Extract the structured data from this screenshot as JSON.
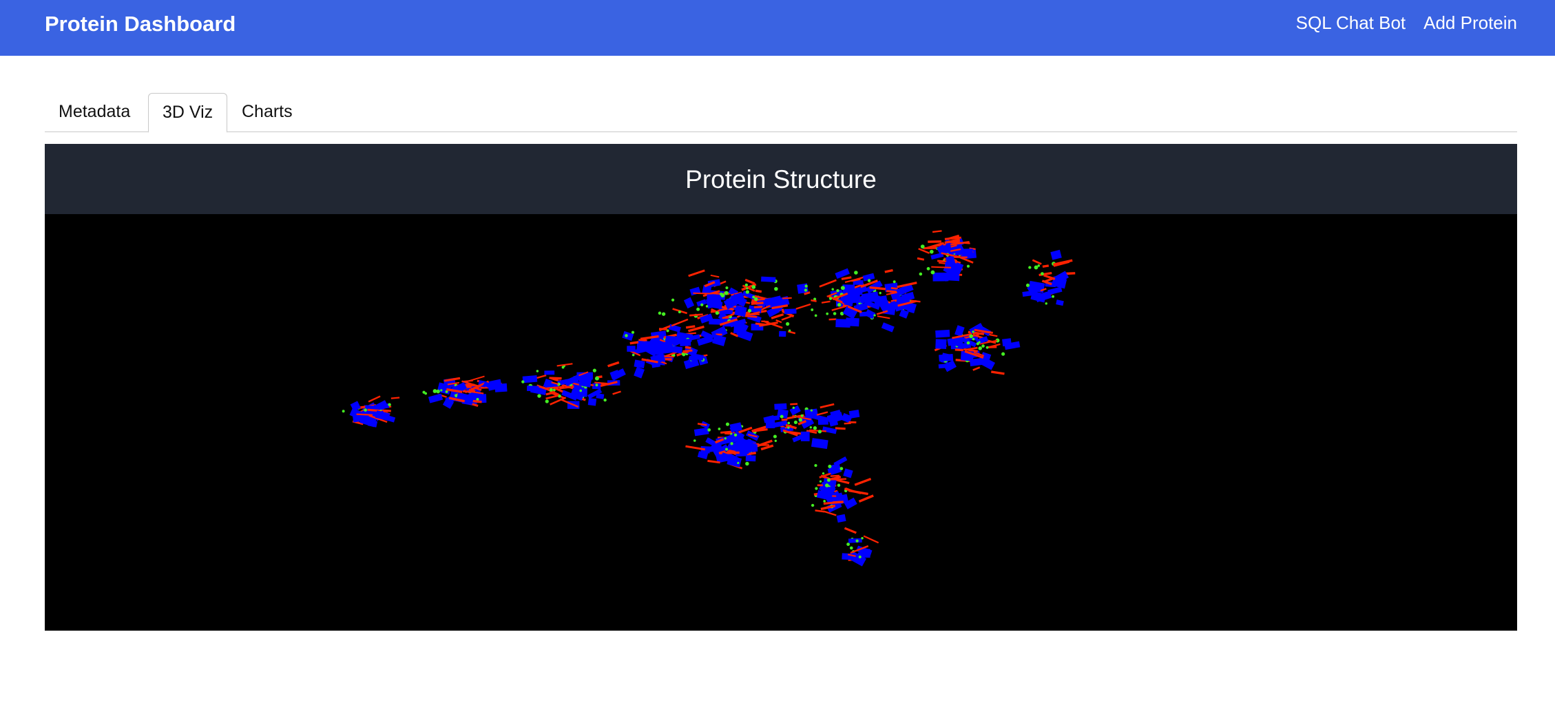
{
  "navbar": {
    "brand": "Protein Dashboard",
    "links": [
      "SQL Chat Bot",
      "Add Protein"
    ],
    "background_color": "#3a63e2"
  },
  "tabs": [
    {
      "label": "Metadata",
      "active": false
    },
    {
      "label": "3D Viz",
      "active": true
    },
    {
      "label": "Charts",
      "active": false
    }
  ],
  "viz": {
    "title": "Protein Structure",
    "header_color": "#212733",
    "background_color": "#000000",
    "colors": {
      "helix": "#0000ff",
      "strand": "#ff2200",
      "coil": "#44ee22"
    }
  }
}
